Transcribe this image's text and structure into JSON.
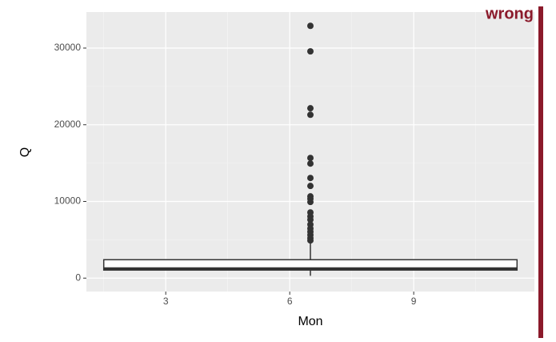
{
  "chart_data": {
    "type": "box",
    "annotation": "wrong",
    "x_label": "Mon",
    "y_label": "Q",
    "xlim": [
      1.08,
      11.92
    ],
    "ylim": [
      -1750,
      34700
    ],
    "xticks": [
      3,
      6,
      9
    ],
    "yticks": [
      0,
      10000,
      20000,
      30000
    ],
    "grid": true,
    "box": {
      "x": 6.5,
      "width": 10,
      "whisker_low": 300,
      "q1": 1050,
      "median": 1250,
      "q3": 2400,
      "whisker_high": 4800,
      "outliers": [
        32900,
        29570,
        22150,
        21300,
        15670,
        14940,
        13060,
        12020,
        10660,
        10350,
        9930,
        8570,
        8050,
        7630,
        7000,
        6480,
        6060,
        5640,
        5220,
        4910
      ],
      "color": "#333333",
      "fill": "#ffffff"
    }
  }
}
